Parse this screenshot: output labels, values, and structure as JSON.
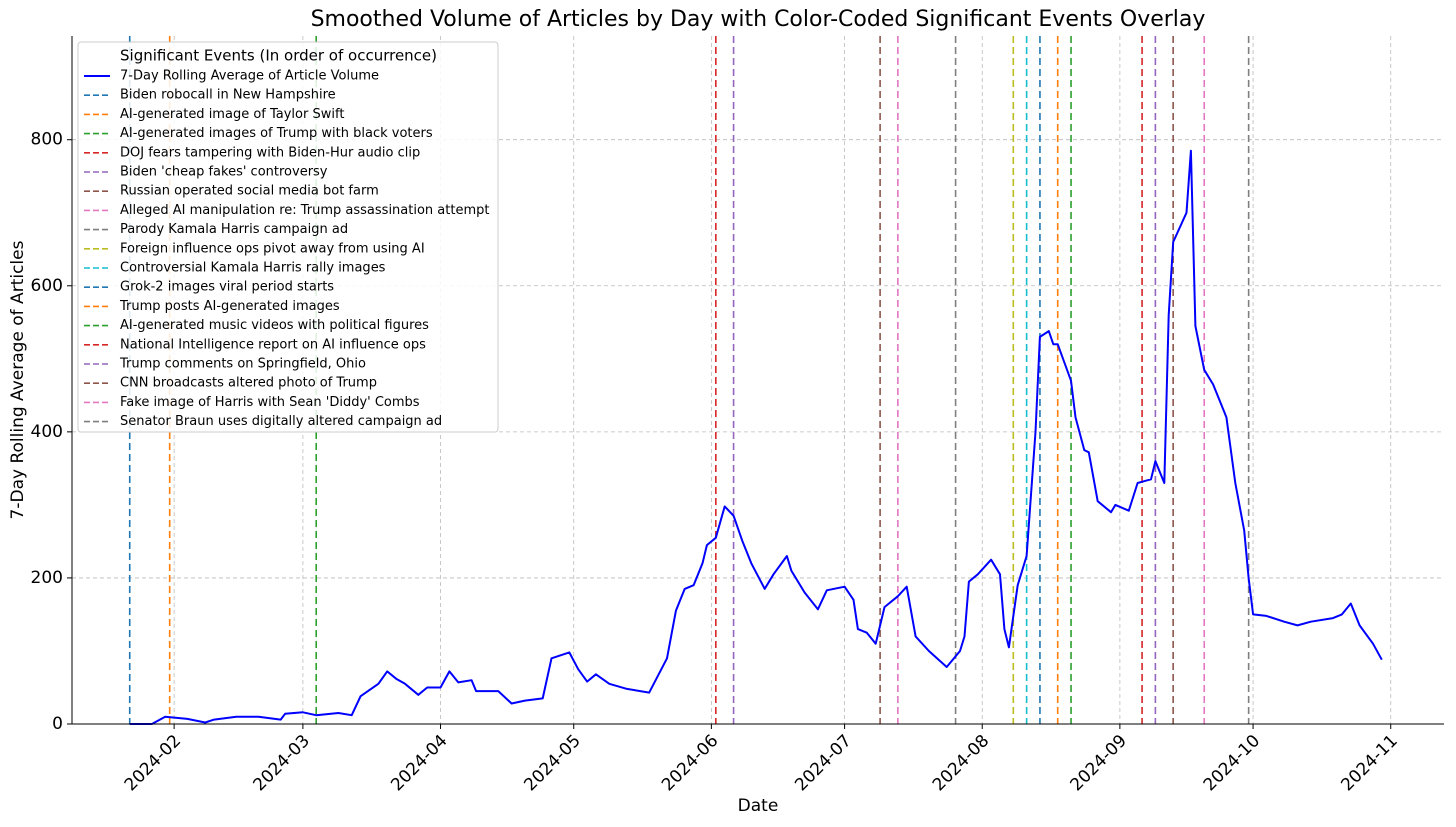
{
  "chart_data": {
    "type": "line",
    "title": "Smoothed Volume of Articles by Day with Color-Coded Significant Events Overlay",
    "x_label": "Date",
    "y_label": "7-Day Rolling Average of Articles",
    "legend_title": "Significant Events (In order of occurrence)",
    "legend": "upper left",
    "grid": true,
    "xlim": [
      "2024-01-09",
      "2024-11-13"
    ],
    "ylim": [
      0,
      942
    ],
    "yticks": [
      0,
      200,
      400,
      600,
      800
    ],
    "xticks": [
      {
        "value": "2024-02-01",
        "label": "2024-02"
      },
      {
        "value": "2024-03-01",
        "label": "2024-03"
      },
      {
        "value": "2024-04-01",
        "label": "2024-04"
      },
      {
        "value": "2024-05-01",
        "label": "2024-05"
      },
      {
        "value": "2024-06-01",
        "label": "2024-06"
      },
      {
        "value": "2024-07-01",
        "label": "2024-07"
      },
      {
        "value": "2024-08-01",
        "label": "2024-08"
      },
      {
        "value": "2024-09-01",
        "label": "2024-09"
      },
      {
        "value": "2024-10-01",
        "label": "2024-10"
      },
      {
        "value": "2024-11-01",
        "label": "2024-11"
      }
    ],
    "x": [
      "2024-01-22",
      "2024-01-27",
      "2024-01-30",
      "2024-02-04",
      "2024-02-08",
      "2024-02-10",
      "2024-02-15",
      "2024-02-20",
      "2024-02-25",
      "2024-02-26",
      "2024-03-01",
      "2024-03-04",
      "2024-03-09",
      "2024-03-12",
      "2024-03-14",
      "2024-03-18",
      "2024-03-20",
      "2024-03-22",
      "2024-03-24",
      "2024-03-27",
      "2024-03-29",
      "2024-04-01",
      "2024-04-03",
      "2024-04-05",
      "2024-04-08",
      "2024-04-09",
      "2024-04-14",
      "2024-04-17",
      "2024-04-20",
      "2024-04-24",
      "2024-04-26",
      "2024-04-30",
      "2024-05-02",
      "2024-05-04",
      "2024-05-06",
      "2024-05-09",
      "2024-05-13",
      "2024-05-18",
      "2024-05-22",
      "2024-05-24",
      "2024-05-26",
      "2024-05-28",
      "2024-05-30",
      "2024-05-31",
      "2024-06-02",
      "2024-06-04",
      "2024-06-06",
      "2024-06-08",
      "2024-06-10",
      "2024-06-13",
      "2024-06-15",
      "2024-06-18",
      "2024-06-19",
      "2024-06-22",
      "2024-06-25",
      "2024-06-27",
      "2024-07-01",
      "2024-07-03",
      "2024-07-04",
      "2024-07-06",
      "2024-07-08",
      "2024-07-10",
      "2024-07-13",
      "2024-07-15",
      "2024-07-17",
      "2024-07-20",
      "2024-07-24",
      "2024-07-27",
      "2024-07-28",
      "2024-07-29",
      "2024-07-31",
      "2024-08-03",
      "2024-08-05",
      "2024-08-06",
      "2024-08-07",
      "2024-08-09",
      "2024-08-11",
      "2024-08-13",
      "2024-08-14",
      "2024-08-16",
      "2024-08-17",
      "2024-08-18",
      "2024-08-21",
      "2024-08-22",
      "2024-08-24",
      "2024-08-25",
      "2024-08-27",
      "2024-08-30",
      "2024-08-31",
      "2024-09-03",
      "2024-09-05",
      "2024-09-08",
      "2024-09-09",
      "2024-09-11",
      "2024-09-12",
      "2024-09-13",
      "2024-09-16",
      "2024-09-17",
      "2024-09-18",
      "2024-09-20",
      "2024-09-22",
      "2024-09-25",
      "2024-09-27",
      "2024-09-29",
      "2024-09-30",
      "2024-10-01",
      "2024-10-04",
      "2024-10-08",
      "2024-10-11",
      "2024-10-14",
      "2024-10-19",
      "2024-10-21",
      "2024-10-23",
      "2024-10-25",
      "2024-10-28",
      "2024-10-30"
    ],
    "series": [
      {
        "name": "7-Day Rolling Average of Article Volume",
        "color": "#0000ff",
        "values": [
          0,
          0,
          10,
          7,
          2,
          6,
          10,
          10,
          6,
          14,
          16,
          12,
          15,
          12,
          38,
          55,
          72,
          62,
          55,
          40,
          50,
          50,
          72,
          57,
          60,
          45,
          45,
          28,
          32,
          35,
          90,
          98,
          75,
          58,
          68,
          55,
          48,
          43,
          90,
          155,
          185,
          190,
          220,
          245,
          255,
          298,
          285,
          250,
          220,
          185,
          205,
          230,
          210,
          180,
          157,
          183,
          188,
          170,
          130,
          125,
          110,
          160,
          175,
          188,
          120,
          100,
          78,
          100,
          120,
          195,
          205,
          225,
          205,
          130,
          105,
          190,
          230,
          400,
          530,
          538,
          520,
          520,
          470,
          420,
          375,
          372,
          305,
          290,
          300,
          292,
          330,
          335,
          360,
          330,
          560,
          660,
          700,
          785,
          545,
          485,
          465,
          420,
          330,
          265,
          200,
          150,
          148,
          140,
          135,
          140,
          145,
          150,
          165,
          135,
          110,
          88
        ]
      }
    ],
    "events": [
      {
        "name": "Biden robocall in New Hampshire",
        "date": "2024-01-22",
        "color": "#1f77b4"
      },
      {
        "name": "AI-generated image of Taylor Swift",
        "date": "2024-01-31",
        "color": "#ff7f0e"
      },
      {
        "name": "AI-generated images of Trump with black voters",
        "date": "2024-03-04",
        "color": "#2ca02c"
      },
      {
        "name": "DOJ fears tampering with Biden-Hur audio clip",
        "date": "2024-06-02",
        "color": "#d62728"
      },
      {
        "name": "Biden 'cheap fakes' controversy",
        "date": "2024-06-06",
        "color": "#9467bd"
      },
      {
        "name": "Russian operated social media bot farm",
        "date": "2024-07-09",
        "color": "#8c564b"
      },
      {
        "name": "Alleged AI manipulation re: Trump assassination attempt",
        "date": "2024-07-13",
        "color": "#e377c2"
      },
      {
        "name": "Parody Kamala Harris campaign ad",
        "date": "2024-07-26",
        "color": "#7f7f7f"
      },
      {
        "name": "Foreign influence ops pivot away from using AI",
        "date": "2024-08-08",
        "color": "#bcbd22"
      },
      {
        "name": "Controversial Kamala Harris rally images",
        "date": "2024-08-11",
        "color": "#17becf"
      },
      {
        "name": "Grok-2 images viral period starts",
        "date": "2024-08-14",
        "color": "#1f77b4"
      },
      {
        "name": "Trump posts AI-generated images",
        "date": "2024-08-18",
        "color": "#ff7f0e"
      },
      {
        "name": "AI-generated music videos with political figures",
        "date": "2024-08-21",
        "color": "#2ca02c"
      },
      {
        "name": "National Intelligence report on AI influence ops",
        "date": "2024-09-06",
        "color": "#d62728"
      },
      {
        "name": "Trump comments on Springfield, Ohio",
        "date": "2024-09-09",
        "color": "#9467bd"
      },
      {
        "name": "CNN broadcasts altered photo of Trump",
        "date": "2024-09-13",
        "color": "#8c564b"
      },
      {
        "name": "Fake image of Harris with Sean 'Diddy' Combs",
        "date": "2024-09-20",
        "color": "#e377c2"
      },
      {
        "name": "Senator Braun uses digitally altered campaign ad",
        "date": "2024-09-30",
        "color": "#7f7f7f"
      }
    ]
  }
}
